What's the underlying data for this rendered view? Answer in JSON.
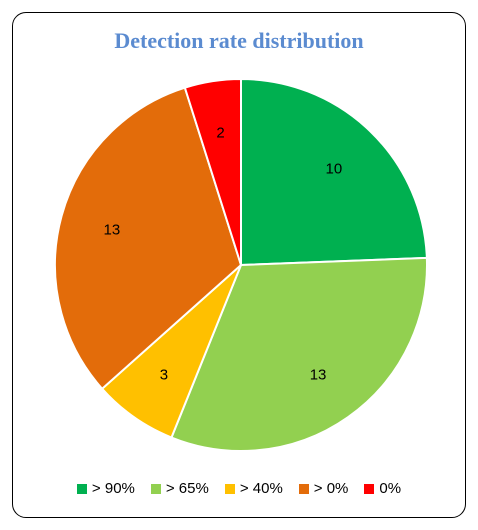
{
  "chart_data": {
    "type": "pie",
    "title": "Detection rate distribution",
    "categories": [
      "> 90%",
      "> 65%",
      "> 40%",
      "> 0%",
      "0%"
    ],
    "values": [
      10,
      13,
      3,
      13,
      2
    ],
    "colors": [
      "#00b050",
      "#92d050",
      "#ffc000",
      "#e36c0a",
      "#ff0000"
    ],
    "legend_position": "bottom"
  }
}
